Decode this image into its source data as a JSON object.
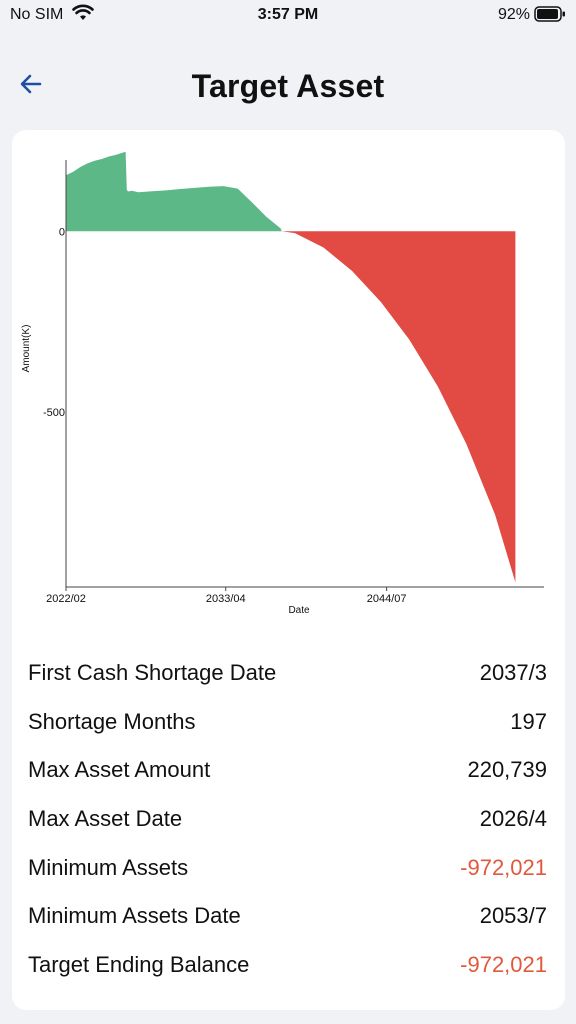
{
  "status_bar": {
    "carrier": "No SIM",
    "time": "3:57 PM",
    "battery_percent": "92%"
  },
  "header": {
    "title": "Target Asset",
    "back_icon": "arrow-left-icon"
  },
  "colors": {
    "accent": "#1e4fa0",
    "positive_area": "#5cb887",
    "negative_area": "#e24a44",
    "negative_text": "#e2583c"
  },
  "chart_data": {
    "type": "area",
    "xlabel": "Date",
    "ylabel": "Amount(K)",
    "x_ticks": [
      "2022/02",
      "2033/04",
      "2044/07"
    ],
    "y_ticks": [
      "0",
      "-500"
    ],
    "ylim": [
      -985,
      225
    ],
    "x_range": [
      "2022/02",
      "2055/07"
    ],
    "grid": false,
    "positive_color": "#5cb887",
    "negative_color": "#e24a44",
    "series": [
      {
        "x": [
          "2022/02",
          "2022/08",
          "2023/02",
          "2023/08",
          "2024/02",
          "2024/08",
          "2025/02",
          "2025/08",
          "2026/04",
          "2026/05",
          "2026/06",
          "2026/09",
          "2027/03",
          "2028/02",
          "2029/02",
          "2030/02",
          "2031/02",
          "2032/02",
          "2033/02",
          "2034/02",
          "2035/02",
          "2036/02",
          "2037/02",
          "2037/03",
          "2038/02",
          "2040/02",
          "2042/02",
          "2044/02",
          "2046/02",
          "2048/02",
          "2050/02",
          "2052/02",
          "2053/07"
        ],
        "values": [
          155,
          165,
          178,
          188,
          195,
          200,
          207,
          212,
          220,
          115,
          110,
          112,
          108,
          111,
          113,
          117,
          120,
          123,
          125,
          118,
          80,
          40,
          8,
          0,
          -5,
          -45,
          -110,
          -195,
          -300,
          -430,
          -590,
          -785,
          -972
        ]
      }
    ]
  },
  "stats": [
    {
      "label": "First Cash Shortage Date",
      "value": "2037/3",
      "negative": false
    },
    {
      "label": "Shortage Months",
      "value": "197",
      "negative": false
    },
    {
      "label": "Max Asset Amount",
      "value": "220,739",
      "negative": false
    },
    {
      "label": "Max Asset Date",
      "value": "2026/4",
      "negative": false
    },
    {
      "label": "Minimum Assets",
      "value": "-972,021",
      "negative": true
    },
    {
      "label": "Minimum Assets Date",
      "value": "2053/7",
      "negative": false
    },
    {
      "label": "Target Ending Balance",
      "value": "-972,021",
      "negative": true
    }
  ]
}
